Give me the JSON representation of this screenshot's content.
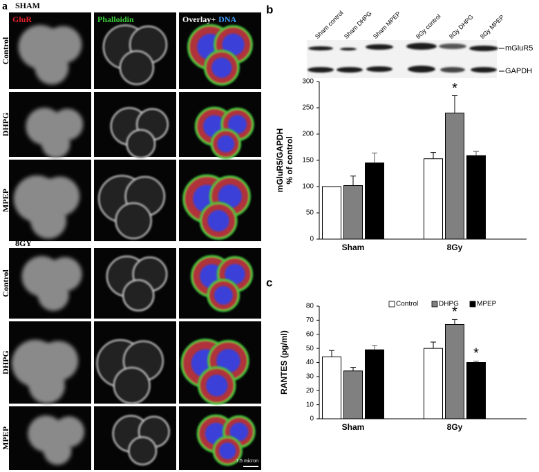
{
  "panel_a": {
    "label": "a",
    "groups": [
      {
        "title": "SHAM",
        "rows": [
          "Control",
          "DHPG",
          "MPEP"
        ]
      },
      {
        "title": "8GY",
        "rows": [
          "Control",
          "DHPG",
          "MPEP"
        ]
      }
    ],
    "column_titles": {
      "glur": "GluR",
      "phalloidin": "Phalloidin",
      "overlay": "Overlay+",
      "dna": "DNA"
    },
    "scale_bar": "7.5 micron"
  },
  "blot": {
    "lanes": [
      "Sham control",
      "Sham DHPG",
      "Sham MPEP",
      "8Gy control",
      "8Gy DHPG",
      "8Gy MPEP"
    ],
    "bands": [
      "mGluR5",
      "GAPDH"
    ]
  },
  "chart_data": [
    {
      "type": "bar",
      "panel_label": "b",
      "ylabel": [
        "mGluR5/GAPDH",
        "% of control"
      ],
      "categories": [
        "Sham",
        "8Gy"
      ],
      "series": [
        {
          "color": "#ffffff",
          "values": [
            100,
            153
          ],
          "errors": [
            0,
            12
          ]
        },
        {
          "color": "#808080",
          "values": [
            102,
            240
          ],
          "errors": [
            18,
            33
          ],
          "significance": [
            null,
            "*"
          ]
        },
        {
          "color": "#000000",
          "values": [
            145,
            159
          ],
          "errors": [
            19,
            8
          ]
        }
      ],
      "ylim": [
        0,
        300
      ],
      "yticks": [
        0,
        50,
        100,
        150,
        200,
        250,
        300
      ]
    },
    {
      "type": "bar",
      "panel_label": "c",
      "ylabel": "RANTES (pg/ml)",
      "categories": [
        "Sham",
        "8Gy"
      ],
      "series": [
        {
          "name": "Control",
          "color": "#ffffff",
          "values": [
            44,
            50
          ],
          "errors": [
            4.5,
            4.5
          ]
        },
        {
          "name": "DHPG",
          "color": "#808080",
          "values": [
            34,
            67
          ],
          "errors": [
            2.5,
            3.5
          ],
          "significance": [
            null,
            "*"
          ]
        },
        {
          "name": "MPEP",
          "color": "#000000",
          "values": [
            49,
            40
          ],
          "errors": [
            3,
            1
          ],
          "significance": [
            null,
            "*"
          ]
        }
      ],
      "ylim": [
        0,
        80
      ],
      "yticks": [
        0,
        10,
        20,
        30,
        40,
        50,
        60,
        70,
        80
      ],
      "legend": "top-right"
    }
  ]
}
